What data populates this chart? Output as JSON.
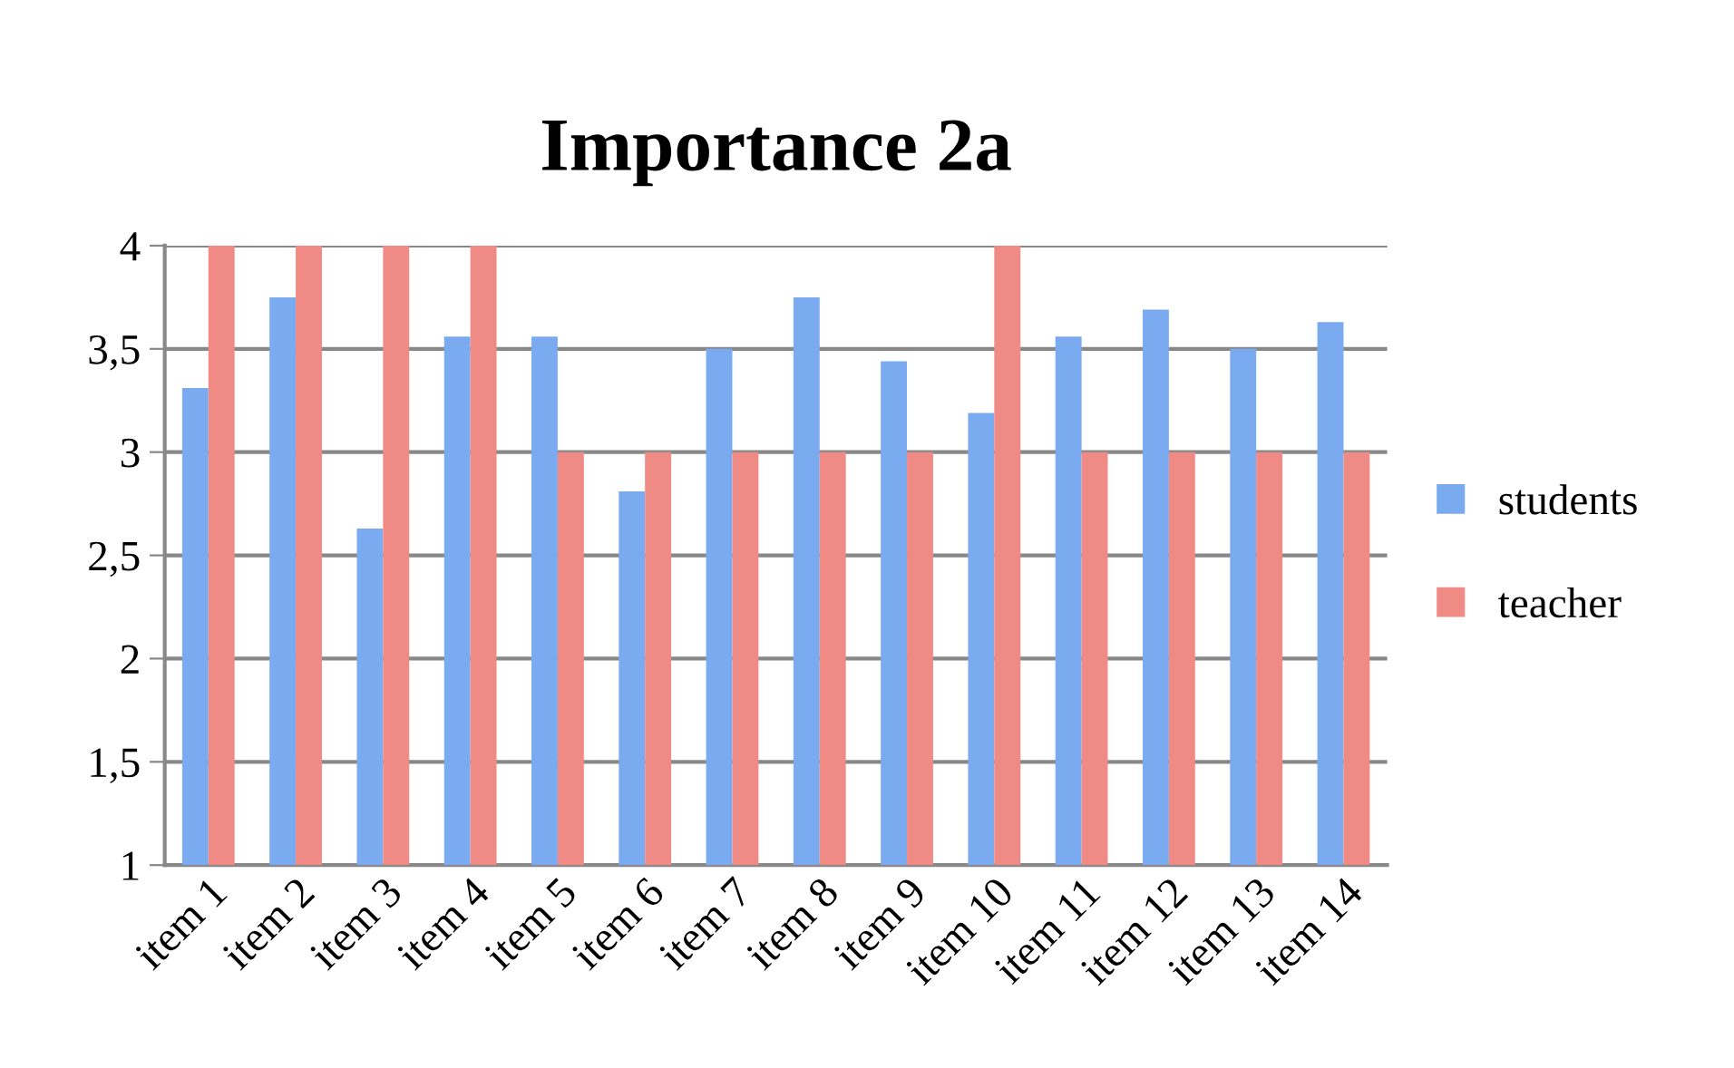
{
  "chart_data": {
    "type": "bar",
    "title": "Importance 2a",
    "categories": [
      "item 1",
      "item 2",
      "item 3",
      "item 4",
      "item 5",
      "item 6",
      "item 7",
      "item 8",
      "item 9",
      "item 10",
      "item 11",
      "item 12",
      "item 13",
      "item 14"
    ],
    "series": [
      {
        "name": "students",
        "color": "#7aabf0",
        "values": [
          3.31,
          3.75,
          2.63,
          3.56,
          3.56,
          2.81,
          3.5,
          3.75,
          3.44,
          3.19,
          3.56,
          3.69,
          3.5,
          3.63
        ]
      },
      {
        "name": "teacher",
        "color": "#f08a85",
        "values": [
          4,
          4,
          4,
          4,
          3,
          3,
          3,
          3,
          3,
          4,
          3,
          3,
          3,
          3
        ]
      }
    ],
    "ylim": [
      1,
      4
    ],
    "yticks": [
      {
        "value": 1,
        "label": "1"
      },
      {
        "value": 1.5,
        "label": "1,5"
      },
      {
        "value": 2,
        "label": "2"
      },
      {
        "value": 2.5,
        "label": "2,5"
      },
      {
        "value": 3,
        "label": "3"
      },
      {
        "value": 3.5,
        "label": "3,5"
      },
      {
        "value": 4,
        "label": "4"
      }
    ],
    "grid": "y",
    "legend": "right"
  }
}
